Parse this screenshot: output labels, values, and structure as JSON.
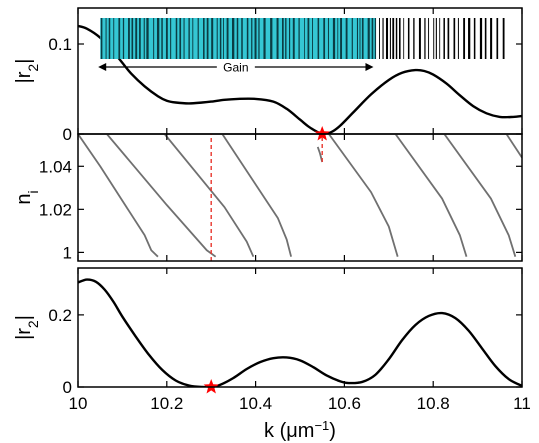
{
  "chart_data": [
    {
      "panel": "top",
      "type": "line",
      "xlim": [
        10,
        11
      ],
      "ylim": [
        0,
        0.14
      ],
      "yticks": [
        0,
        0.1
      ],
      "ytick_labels": [
        "0",
        "0.1"
      ],
      "ylabel_main": "|r",
      "ylabel_sub": "2",
      "ylabel_end": "|",
      "line_color": "#000000",
      "series": [
        {
          "x": [
            10,
            10.02,
            10.05,
            10.08,
            10.1,
            10.12,
            10.15,
            10.18,
            10.2,
            10.22,
            10.25,
            10.28,
            10.3,
            10.33,
            10.36,
            10.4,
            10.44,
            10.47,
            10.5,
            10.52,
            10.54,
            10.55,
            10.57,
            10.59,
            10.62,
            10.66,
            10.7,
            10.73,
            10.76,
            10.78,
            10.8,
            10.83,
            10.86,
            10.89,
            10.92,
            10.95,
            10.98,
            11
          ],
          "values": [
            0.12,
            0.117,
            0.107,
            0.091,
            0.079,
            0.067,
            0.053,
            0.042,
            0.037,
            0.035,
            0.034,
            0.035,
            0.036,
            0.038,
            0.039,
            0.039,
            0.036,
            0.028,
            0.016,
            0.008,
            0.002,
            0.0,
            0.002,
            0.009,
            0.024,
            0.044,
            0.06,
            0.068,
            0.071,
            0.07,
            0.066,
            0.056,
            0.043,
            0.031,
            0.023,
            0.019,
            0.019,
            0.02
          ]
        }
      ],
      "markers": [
        {
          "x": 10.55,
          "y": 0,
          "symbol": "star",
          "color": "#ff0000"
        }
      ],
      "grating": {
        "x_start": 10.05,
        "x_gain_end": 10.67,
        "x_end": 10.97,
        "gain_color": "#35c7d4",
        "stripe_color": "#000000",
        "arrow_label": "Gain"
      }
    },
    {
      "panel": "middle",
      "type": "line",
      "xlim": [
        10,
        11
      ],
      "ylim": [
        0.996,
        1.055
      ],
      "yticks": [
        1,
        1.02,
        1.04
      ],
      "ytick_labels": [
        "1",
        "1.02",
        "1.04"
      ],
      "ylabel_main": "n",
      "ylabel_sub": "i",
      "line_color": "#707070",
      "series": [
        {
          "x": [
            10.0,
            10.05,
            10.1,
            10.15,
            10.165,
            10.18
          ],
          "values": [
            1.055,
            1.04,
            1.024,
            1.008,
            1.001,
            0.998
          ]
        },
        {
          "x": [
            10.065,
            10.2,
            10.29,
            10.31
          ],
          "values": [
            1.055,
            1.022,
            1.001,
            0.998
          ]
        },
        {
          "x": [
            10.195,
            10.33,
            10.38,
            10.395
          ],
          "values": [
            1.055,
            1.021,
            1.005,
            0.998
          ]
        },
        {
          "x": [
            10.325,
            10.45,
            10.47,
            10.48
          ],
          "values": [
            1.055,
            1.016,
            1.006,
            0.998
          ]
        },
        {
          "x": [
            10.54,
            10.545,
            10.55
          ],
          "values": [
            1.049,
            1.046,
            1.042
          ]
        },
        {
          "x": [
            10.565,
            10.66,
            10.7,
            10.72
          ],
          "values": [
            1.055,
            1.028,
            1.012,
            0.998
          ]
        },
        {
          "x": [
            10.715,
            10.82,
            10.86,
            10.875
          ],
          "values": [
            1.055,
            1.025,
            1.008,
            0.998
          ]
        },
        {
          "x": [
            10.825,
            10.93,
            10.97,
            10.985
          ],
          "values": [
            1.055,
            1.025,
            1.008,
            0.998
          ]
        },
        {
          "x": [
            10.965,
            11.0
          ],
          "values": [
            1.055,
            1.044
          ]
        }
      ],
      "dashed_lines": [
        {
          "x": 10.3,
          "y_from": 0.996,
          "y_to": 1.055,
          "color": "#e8362d"
        },
        {
          "x": 10.55,
          "y_from": 1.042,
          "y_to": 1.055,
          "color": "#e8362d"
        }
      ]
    },
    {
      "panel": "bottom",
      "type": "line",
      "xlim": [
        10,
        11
      ],
      "ylim": [
        0,
        0.33
      ],
      "yticks": [
        0,
        0.2
      ],
      "ytick_labels": [
        "0",
        "0.2"
      ],
      "xticks": [
        10,
        10.2,
        10.4,
        10.6,
        10.8,
        11
      ],
      "xtick_labels": [
        "10",
        "10.2",
        "10.4",
        "10.6",
        "10.8",
        "11"
      ],
      "xlabel_main": "k (μm",
      "xlabel_sup": "−1",
      "xlabel_end": ")",
      "ylabel_main": "|r",
      "ylabel_sub": "2",
      "ylabel_end": "|",
      "line_color": "#000000",
      "series": [
        {
          "x": [
            10,
            10.02,
            10.04,
            10.06,
            10.08,
            10.1,
            10.13,
            10.16,
            10.19,
            10.22,
            10.25,
            10.28,
            10.3,
            10.32,
            10.35,
            10.38,
            10.41,
            10.44,
            10.47,
            10.5,
            10.53,
            10.56,
            10.59,
            10.61,
            10.64,
            10.67,
            10.7,
            10.73,
            10.76,
            10.79,
            10.82,
            10.85,
            10.88,
            10.91,
            10.94,
            10.97,
            11
          ],
          "values": [
            0.29,
            0.298,
            0.292,
            0.27,
            0.236,
            0.195,
            0.14,
            0.089,
            0.047,
            0.018,
            0.004,
            0.0,
            0.001,
            0.006,
            0.025,
            0.05,
            0.069,
            0.08,
            0.082,
            0.074,
            0.055,
            0.032,
            0.016,
            0.011,
            0.014,
            0.034,
            0.077,
            0.13,
            0.172,
            0.197,
            0.205,
            0.191,
            0.156,
            0.107,
            0.058,
            0.022,
            0.003
          ]
        }
      ],
      "markers": [
        {
          "x": 10.3,
          "y": 0,
          "symbol": "star",
          "color": "#ff0000"
        }
      ]
    }
  ]
}
